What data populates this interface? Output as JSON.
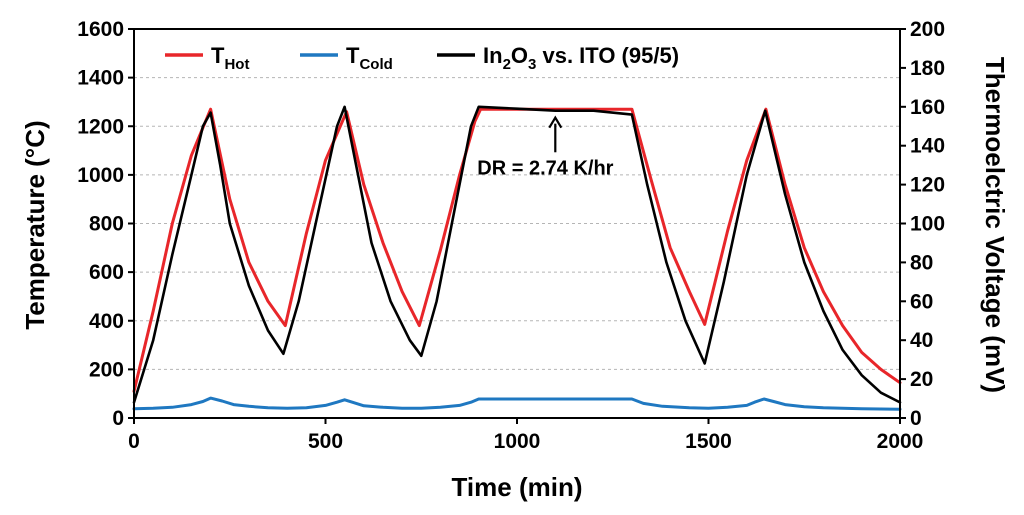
{
  "chart_data": {
    "type": "line",
    "xlabel": "Time (min)",
    "ylabel": "Temperature (°C)",
    "y2label": "Thermoelctric Voltage (mV)",
    "xlim": [
      0,
      2000
    ],
    "ylim": [
      0,
      1600
    ],
    "y2lim": [
      0,
      200
    ],
    "x_ticks": [
      0,
      500,
      1000,
      1500,
      2000
    ],
    "y_ticks": [
      0,
      200,
      400,
      600,
      800,
      1000,
      1200,
      1400,
      1600
    ],
    "y2_ticks": [
      0,
      20,
      40,
      60,
      80,
      100,
      120,
      140,
      160,
      180,
      200
    ],
    "grid": "horizontal-dashed",
    "legend_position": "top-left",
    "series": [
      {
        "name": "T_Hot",
        "label_main": "T",
        "label_sub": "Hot",
        "axis": "left",
        "color": "#e8262a",
        "points": [
          [
            0,
            110
          ],
          [
            50,
            440
          ],
          [
            100,
            800
          ],
          [
            150,
            1080
          ],
          [
            200,
            1270
          ],
          [
            250,
            900
          ],
          [
            300,
            640
          ],
          [
            350,
            480
          ],
          [
            395,
            380
          ],
          [
            450,
            760
          ],
          [
            500,
            1060
          ],
          [
            555,
            1260
          ],
          [
            600,
            960
          ],
          [
            650,
            720
          ],
          [
            700,
            520
          ],
          [
            745,
            380
          ],
          [
            800,
            690
          ],
          [
            850,
            1000
          ],
          [
            890,
            1220
          ],
          [
            905,
            1270
          ],
          [
            1000,
            1270
          ],
          [
            1100,
            1270
          ],
          [
            1200,
            1270
          ],
          [
            1300,
            1270
          ],
          [
            1350,
            980
          ],
          [
            1400,
            700
          ],
          [
            1450,
            520
          ],
          [
            1490,
            385
          ],
          [
            1550,
            770
          ],
          [
            1600,
            1060
          ],
          [
            1650,
            1270
          ],
          [
            1700,
            960
          ],
          [
            1750,
            700
          ],
          [
            1800,
            520
          ],
          [
            1850,
            380
          ],
          [
            1900,
            270
          ],
          [
            1950,
            200
          ],
          [
            2000,
            145
          ]
        ]
      },
      {
        "name": "T_Cold",
        "label_main": "T",
        "label_sub": "Cold",
        "axis": "left",
        "color": "#1f78c1",
        "points": [
          [
            0,
            38
          ],
          [
            50,
            40
          ],
          [
            100,
            44
          ],
          [
            150,
            55
          ],
          [
            180,
            68
          ],
          [
            200,
            82
          ],
          [
            230,
            70
          ],
          [
            260,
            55
          ],
          [
            300,
            48
          ],
          [
            350,
            42
          ],
          [
            400,
            40
          ],
          [
            450,
            42
          ],
          [
            500,
            52
          ],
          [
            530,
            65
          ],
          [
            550,
            75
          ],
          [
            570,
            65
          ],
          [
            600,
            50
          ],
          [
            650,
            44
          ],
          [
            700,
            40
          ],
          [
            750,
            40
          ],
          [
            800,
            44
          ],
          [
            850,
            52
          ],
          [
            880,
            65
          ],
          [
            900,
            78
          ],
          [
            1000,
            78
          ],
          [
            1100,
            78
          ],
          [
            1200,
            78
          ],
          [
            1300,
            78
          ],
          [
            1330,
            60
          ],
          [
            1380,
            48
          ],
          [
            1450,
            42
          ],
          [
            1500,
            40
          ],
          [
            1550,
            44
          ],
          [
            1600,
            52
          ],
          [
            1620,
            65
          ],
          [
            1645,
            78
          ],
          [
            1670,
            68
          ],
          [
            1700,
            55
          ],
          [
            1750,
            46
          ],
          [
            1800,
            42
          ],
          [
            1900,
            38
          ],
          [
            2000,
            36
          ]
        ]
      },
      {
        "name": "In2O3 vs. ITO (95/5)",
        "label_main": "In",
        "label_sub": "2",
        "label_main2": "O",
        "label_sub2": "3",
        "label_rest": " vs. ITO (95/5)",
        "axis": "right",
        "color": "#000000",
        "points": [
          [
            0,
            8
          ],
          [
            50,
            40
          ],
          [
            100,
            84
          ],
          [
            150,
            125
          ],
          [
            180,
            150
          ],
          [
            200,
            157
          ],
          [
            225,
            130
          ],
          [
            250,
            100
          ],
          [
            300,
            68
          ],
          [
            350,
            45
          ],
          [
            390,
            33
          ],
          [
            430,
            60
          ],
          [
            480,
            105
          ],
          [
            530,
            150
          ],
          [
            550,
            160
          ],
          [
            580,
            130
          ],
          [
            620,
            90
          ],
          [
            670,
            60
          ],
          [
            720,
            40
          ],
          [
            750,
            32
          ],
          [
            790,
            60
          ],
          [
            840,
            110
          ],
          [
            880,
            150
          ],
          [
            900,
            160
          ],
          [
            1000,
            159
          ],
          [
            1100,
            158
          ],
          [
            1200,
            158
          ],
          [
            1300,
            156
          ],
          [
            1340,
            120
          ],
          [
            1390,
            80
          ],
          [
            1440,
            50
          ],
          [
            1490,
            28
          ],
          [
            1540,
            70
          ],
          [
            1600,
            125
          ],
          [
            1648,
            158
          ],
          [
            1700,
            115
          ],
          [
            1750,
            80
          ],
          [
            1800,
            55
          ],
          [
            1850,
            35
          ],
          [
            1900,
            22
          ],
          [
            1950,
            13
          ],
          [
            2000,
            8
          ]
        ]
      }
    ],
    "annotations": [
      {
        "text": "DR = 2.74 K/hr",
        "x": 1100,
        "y": 1260,
        "y_text": 1060
      }
    ]
  }
}
